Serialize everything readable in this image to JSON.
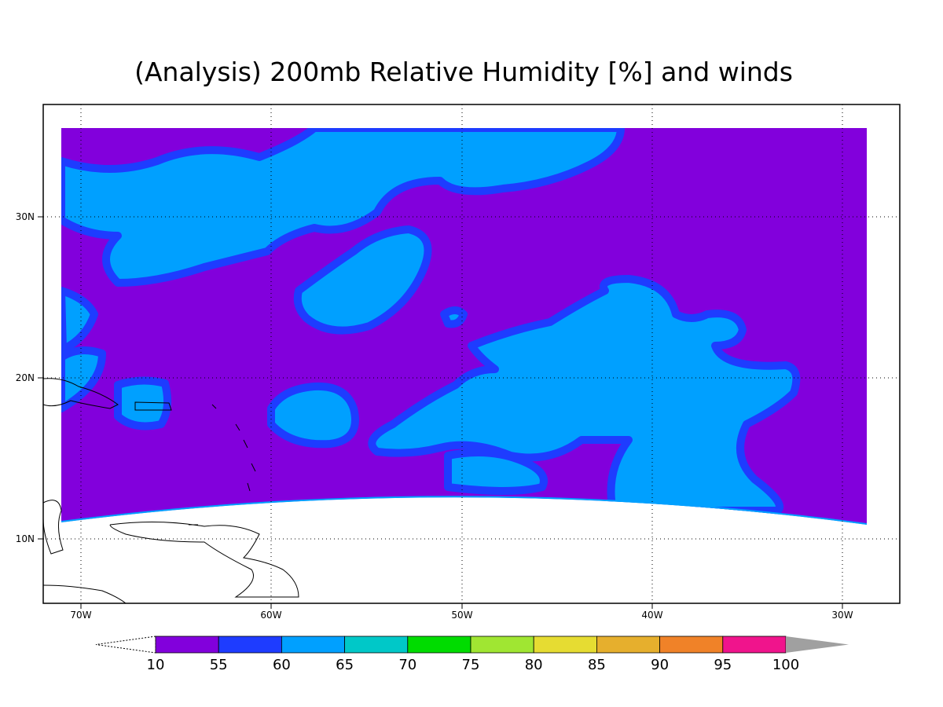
{
  "title": "(Analysis) 200mb Relative Humidity [%] and winds",
  "map": {
    "lon_ticks": [
      "70W",
      "60W",
      "50W",
      "40W",
      "30W"
    ],
    "lat_ticks": [
      "30N",
      "20N",
      "10N"
    ]
  },
  "colorbar": {
    "levels": [
      10,
      55,
      60,
      65,
      70,
      75,
      80,
      85,
      90,
      95,
      100
    ],
    "colors": [
      "#8200dc",
      "#1e3cff",
      "#00a0ff",
      "#00c8c8",
      "#00dc00",
      "#a0e632",
      "#e6dc32",
      "#e6af2d",
      "#f08228",
      "#f0148c"
    ],
    "over_color": "#a0a0a0"
  }
}
